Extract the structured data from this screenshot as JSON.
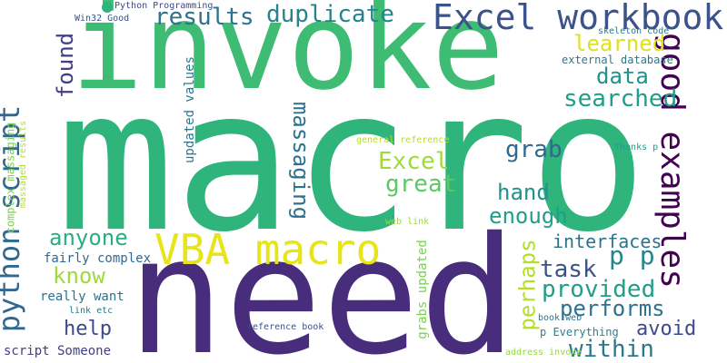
{
  "words": [
    {
      "text": "macro",
      "color": "#2fb47c"
    },
    {
      "text": "invoke",
      "color": "#3ebc74"
    },
    {
      "text": "need",
      "color": "#472d7b"
    },
    {
      "text": "VBA macro",
      "color": "#e7e419"
    },
    {
      "text": "Excel workbook",
      "color": "#3b528b"
    },
    {
      "text": "good examples",
      "color": "#440154"
    },
    {
      "text": "python script",
      "color": "#31688e"
    },
    {
      "text": "duplicate",
      "color": "#26828e"
    },
    {
      "text": "results",
      "color": "#2c728e"
    },
    {
      "text": "learned",
      "color": "#dde318"
    },
    {
      "text": "data",
      "color": "#21918c"
    },
    {
      "text": "searched",
      "color": "#1f9e89"
    },
    {
      "text": "found",
      "color": "#433e85"
    },
    {
      "text": "massaging",
      "color": "#2c728e"
    },
    {
      "text": "grab",
      "color": "#31688e"
    },
    {
      "text": "Excel",
      "color": "#a0da39"
    },
    {
      "text": "great",
      "color": "#5ec962"
    },
    {
      "text": "hand",
      "color": "#21918c"
    },
    {
      "text": "enough",
      "color": "#1f9e89"
    },
    {
      "text": "anyone",
      "color": "#29af7f"
    },
    {
      "text": "interfaces",
      "color": "#2c728e"
    },
    {
      "text": "p p",
      "color": "#25858e"
    },
    {
      "text": "task",
      "color": "#3b528b"
    },
    {
      "text": "know",
      "color": "#a0da39"
    },
    {
      "text": "provided",
      "color": "#1f9e89"
    },
    {
      "text": "performs",
      "color": "#2c728e"
    },
    {
      "text": "perhaps",
      "color": "#b5de2b"
    },
    {
      "text": "help",
      "color": "#3e4989"
    },
    {
      "text": "avoid",
      "color": "#3e4989"
    },
    {
      "text": "within",
      "color": "#2a788e"
    },
    {
      "text": "fairly complex",
      "color": "#31688e"
    },
    {
      "text": "really want",
      "color": "#2c728e"
    },
    {
      "text": "script Someone",
      "color": "#424086"
    },
    {
      "text": "updated values",
      "color": "#2a788e"
    },
    {
      "text": "grabs updated",
      "color": "#7ad151"
    },
    {
      "text": "external database",
      "color": "#2a788e"
    },
    {
      "text": "p Everything",
      "color": "#26828e"
    },
    {
      "text": "complex massaging",
      "color": "#7ad151"
    },
    {
      "text": "massaged results",
      "color": "#b5de2b"
    },
    {
      "text": "Python Programming",
      "color": "#3e4989"
    },
    {
      "text": "Win32 Good",
      "color": "#3b528b"
    },
    {
      "text": "skeleton code",
      "color": "#2a788e"
    },
    {
      "text": "general reference",
      "color": "#b5de2b"
    },
    {
      "text": "web link",
      "color": "#a0da39"
    },
    {
      "text": "Thanks p",
      "color": "#1f9e89"
    },
    {
      "text": "reference book",
      "color": "#3b528b"
    },
    {
      "text": "book web",
      "color": "#2a788e"
    },
    {
      "text": "address invoke",
      "color": "#95d840"
    },
    {
      "text": "link etc",
      "color": "#2a788e"
    }
  ]
}
